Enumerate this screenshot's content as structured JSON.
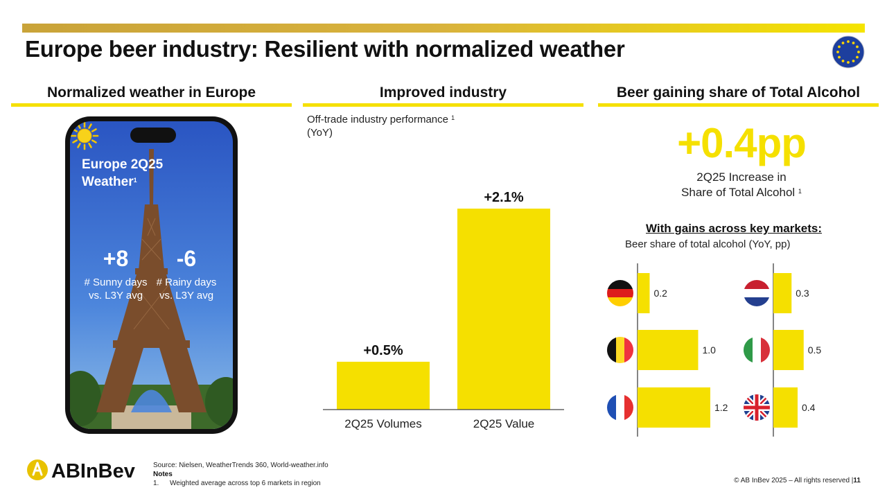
{
  "title": "Europe beer industry: Resilient with normalized weather",
  "sections": {
    "left": "Normalized weather in Europe",
    "middle": "Improved industry",
    "right": "Beer gaining share of Total Alcohol"
  },
  "weather": {
    "title_line1": "Europe 2Q25",
    "title_line2": "Weather",
    "title_sup": "1",
    "sunny_value": "+8",
    "sunny_label1": "# Sunny days",
    "sunny_label2": "vs. L3Y avg",
    "rainy_value": "-6",
    "rainy_label1": "# Rainy days",
    "rainy_label2": "vs. L3Y avg"
  },
  "industry": {
    "subtitle1": "Off-trade industry performance",
    "subtitle_sup": "1",
    "subtitle2": "(YoY)"
  },
  "share": {
    "big_value": "+0.4pp",
    "desc1": "2Q25 Increase in",
    "desc2": "Share of Total Alcohol",
    "desc_sup": "1",
    "gains_title": "With gains across key markets:",
    "gains_sub": "Beer share of total alcohol (YoY, pp)"
  },
  "chart_data": [
    {
      "type": "bar",
      "title": "Off-trade industry performance (YoY)",
      "categories": [
        "2Q25 Volumes",
        "2Q25 Value"
      ],
      "values": [
        0.5,
        2.1
      ],
      "labels": [
        "+0.5%",
        "+2.1%"
      ],
      "ylim": [
        0,
        2.1
      ]
    },
    {
      "type": "bar",
      "orientation": "horizontal",
      "title": "Beer share of total alcohol (YoY, pp)",
      "series": [
        {
          "name": "left column",
          "categories": [
            "Germany",
            "Belgium",
            "France"
          ],
          "values": [
            0.2,
            1.0,
            1.2
          ],
          "labels": [
            "0.2",
            "1.0",
            "1.2"
          ]
        },
        {
          "name": "right column",
          "categories": [
            "Netherlands",
            "Italy",
            "United Kingdom"
          ],
          "values": [
            0.3,
            0.5,
            0.4
          ],
          "labels": [
            "0.3",
            "0.5",
            "0.4"
          ]
        }
      ],
      "xlim": [
        0,
        1.2
      ]
    }
  ],
  "flags": {
    "germany": "germany-flag-icon",
    "belgium": "belgium-flag-icon",
    "france": "france-flag-icon",
    "netherlands": "netherlands-flag-icon",
    "italy": "italy-flag-icon",
    "uk": "uk-flag-icon"
  },
  "footer": {
    "logo_text": "ABInBev",
    "source": "Source: Nielsen, WeatherTrends 360, World-weather.info",
    "notes_label": "Notes",
    "note1_num": "1.",
    "note1": "Weighted average across top 6 markets in region",
    "copyright": "© AB InBev 2025 – All rights reserved",
    "page": "11"
  },
  "colors": {
    "accent": "#f5e000",
    "gold": "#c9a339",
    "sky": "#2e63c9"
  }
}
